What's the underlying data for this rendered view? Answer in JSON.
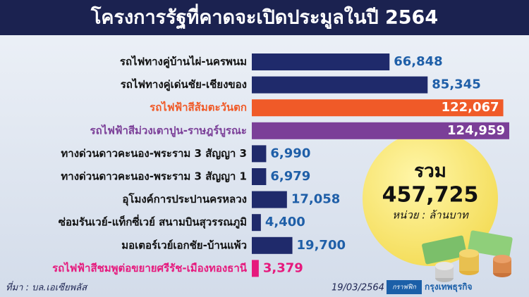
{
  "chart_data": {
    "type": "bar",
    "orientation": "horizontal",
    "title": "โครงการรัฐที่คาดจะเปิดประมูลในปี 2564",
    "categories": [
      "รถไฟทางคู่บ้านไผ่-นครพนม",
      "รถไฟทางคู่เด่นชัย-เชียงของ",
      "รถไฟฟ้าสีส้มตะวันตก",
      "รถไฟฟ้าสีม่วงเตาปูน-ราษฎร์บูรณะ",
      "ทางด่วนดาวคะนอง-พระราม 3 สัญญา 3",
      "ทางด่วนดาวคะนอง-พระราม 3 สัญญา 1",
      "อุโมงค์การประปานครหลวง",
      "ซ่อมรันเวย์-แท็กซี่เวย์ สนามบินสุวรรณภูมิ",
      "มอเตอร์เวย์เอกชัย-บ้านแพ้ว",
      "รถไฟฟ้าสีชมพูต่อขยายศรีรัช-เมืองทองธานี"
    ],
    "values": [
      66848,
      85345,
      122067,
      124959,
      6990,
      6979,
      17058,
      4400,
      19700,
      3379
    ],
    "value_labels": [
      "66,848",
      "85,345",
      "122,067",
      "124,959",
      "6,990",
      "6,979",
      "17,058",
      "4,400",
      "19,700",
      "3,379"
    ],
    "colors": [
      "#1f2a6b",
      "#1f2a6b",
      "#f05a28",
      "#7b3f98",
      "#1f2a6b",
      "#1f2a6b",
      "#1f2a6b",
      "#1f2a6b",
      "#1f2a6b",
      "#e6197d"
    ],
    "total": {
      "label": "รวม",
      "value": "457,725",
      "unit": "หน่วย : ล้านบาท"
    },
    "source": "ที่มา : บล.เอเซียพลัส",
    "date": "19/03/2564",
    "credit": {
      "prefix": "กราฟฟิก",
      "name": "กรุงเทพธุรกิจ"
    }
  }
}
